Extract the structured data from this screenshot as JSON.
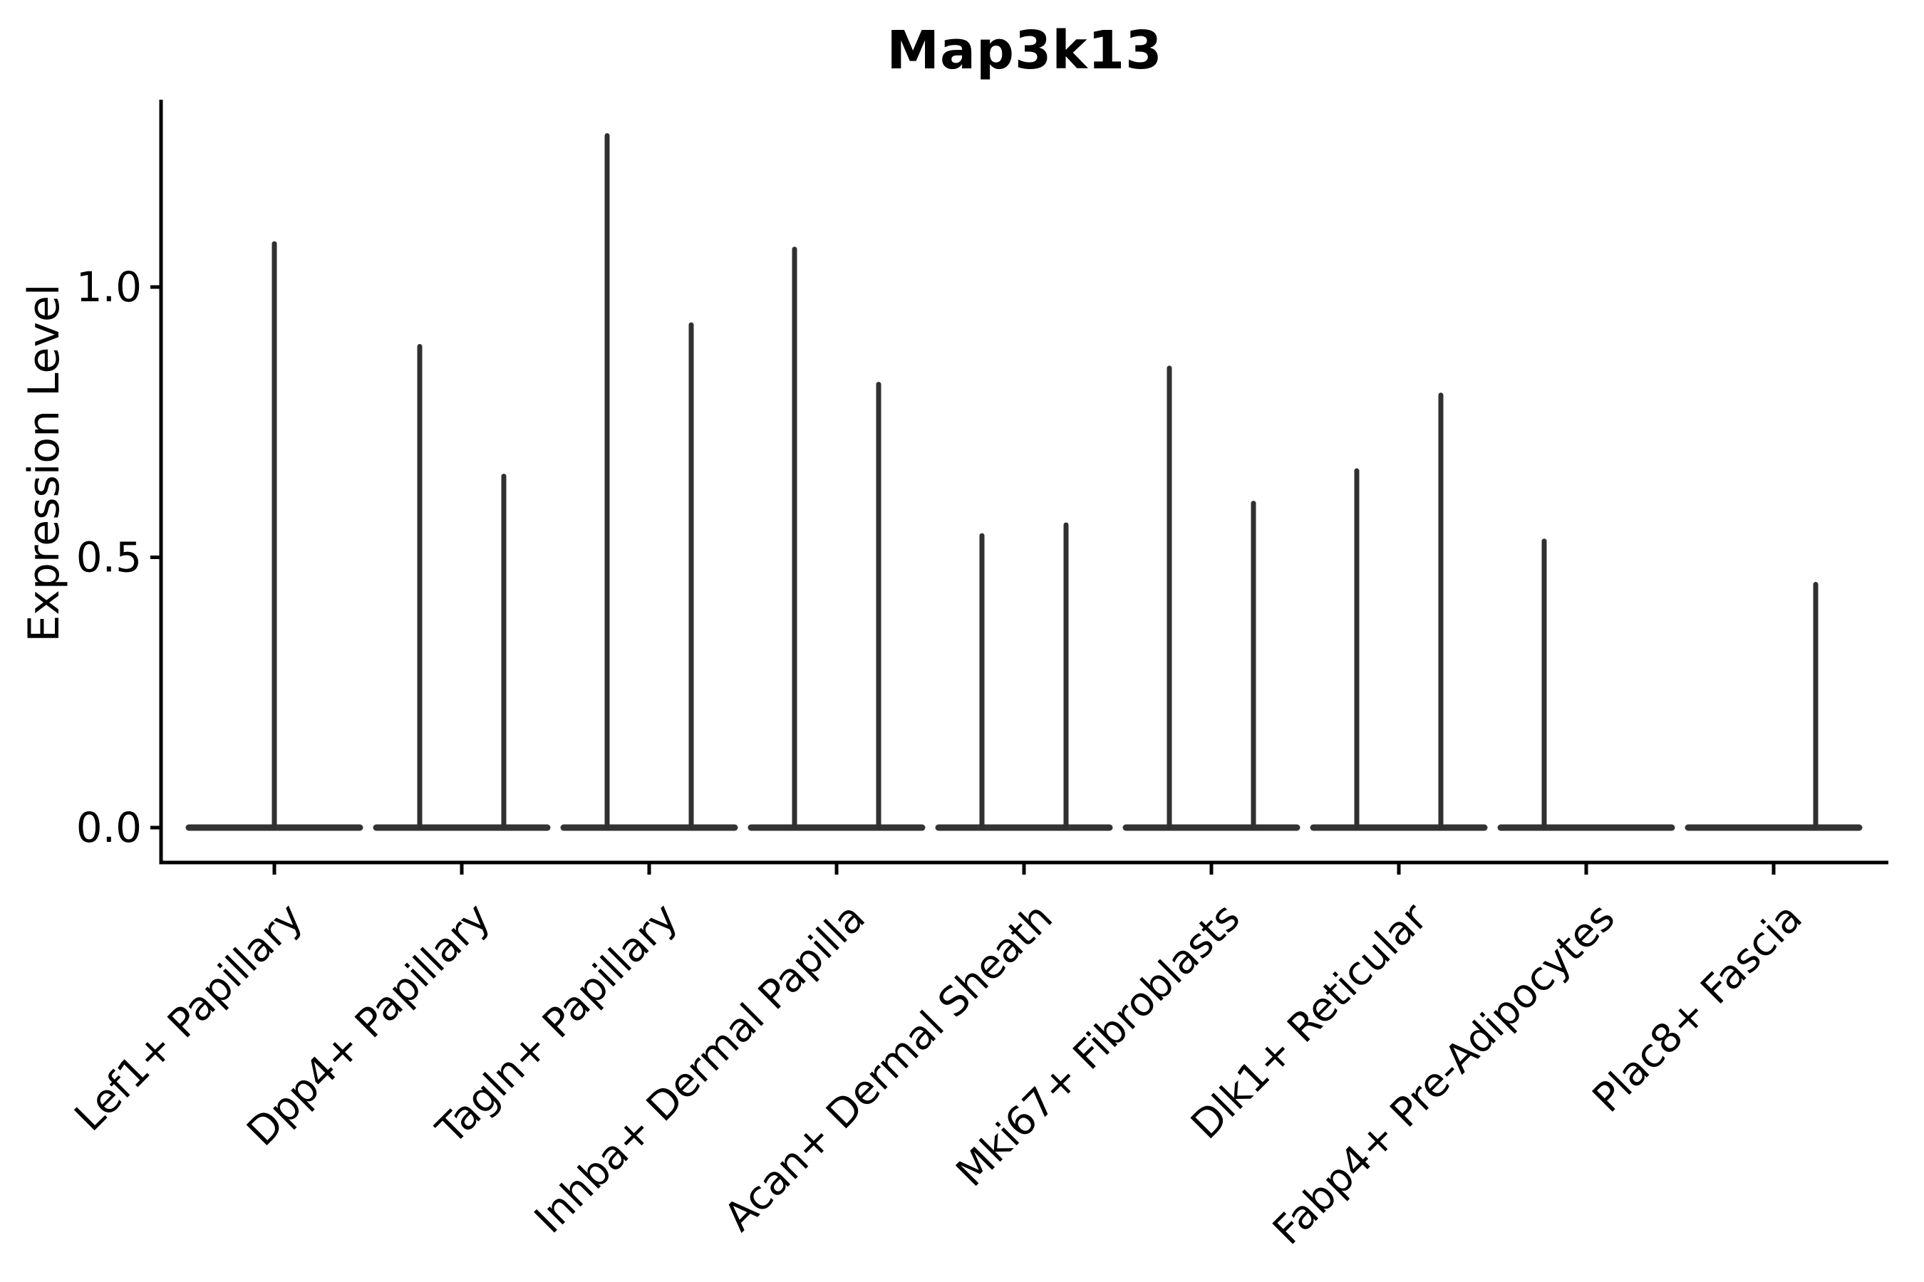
{
  "title": "Map3k13",
  "ylabel": "Expression Level",
  "colors": {
    "background": "#ffffff",
    "axis": "#000000",
    "text": "#000000",
    "violin_stroke": "#303030",
    "baseline_stroke": "#333333"
  },
  "chart_data": {
    "type": "violin",
    "title": "Map3k13",
    "xlabel": "",
    "ylabel": "Expression Level",
    "ylim": [
      -0.065,
      1.35
    ],
    "grid": false,
    "legend": null,
    "x_tick_rotation": 45,
    "yticks": [
      {
        "value": 0.0,
        "label": "0.0"
      },
      {
        "value": 0.5,
        "label": "0.5"
      },
      {
        "value": 1.0,
        "label": "1.0"
      }
    ],
    "categories": [
      "Lef1+ Papillary",
      "Dpp4+ Papillary",
      "Tagln+ Papillary",
      "Inhba+ Dermal Papilla",
      "Acan+ Dermal Sheath",
      "Mki67+ Fibroblasts",
      "Dlk1+ Reticular",
      "Fabp4+ Pre-Adipocytes",
      "Plac8+ Fascia"
    ],
    "violins": [
      {
        "category": "Lef1+ Papillary",
        "peaks": [
          {
            "position": "center",
            "max": 1.08
          }
        ]
      },
      {
        "category": "Dpp4+ Papillary",
        "peaks": [
          {
            "position": "left",
            "max": 0.89
          },
          {
            "position": "right",
            "max": 0.65
          }
        ]
      },
      {
        "category": "Tagln+ Papillary",
        "peaks": [
          {
            "position": "left",
            "max": 1.28
          },
          {
            "position": "right",
            "max": 0.93
          }
        ]
      },
      {
        "category": "Inhba+ Dermal Papilla",
        "peaks": [
          {
            "position": "left",
            "max": 1.07
          },
          {
            "position": "right",
            "max": 0.82
          }
        ]
      },
      {
        "category": "Acan+ Dermal Sheath",
        "peaks": [
          {
            "position": "left",
            "max": 0.54
          },
          {
            "position": "right",
            "max": 0.56
          }
        ]
      },
      {
        "category": "Mki67+ Fibroblasts",
        "peaks": [
          {
            "position": "left",
            "max": 0.85
          },
          {
            "position": "right",
            "max": 0.6
          }
        ]
      },
      {
        "category": "Dlk1+ Reticular",
        "peaks": [
          {
            "position": "left",
            "max": 0.66
          },
          {
            "position": "right",
            "max": 0.8
          }
        ]
      },
      {
        "category": "Fabp4+ Pre-Adipocytes",
        "peaks": [
          {
            "position": "left",
            "max": 0.53
          }
        ]
      },
      {
        "category": "Plac8+ Fascia",
        "peaks": [
          {
            "position": "right",
            "max": 0.45
          }
        ]
      }
    ]
  }
}
